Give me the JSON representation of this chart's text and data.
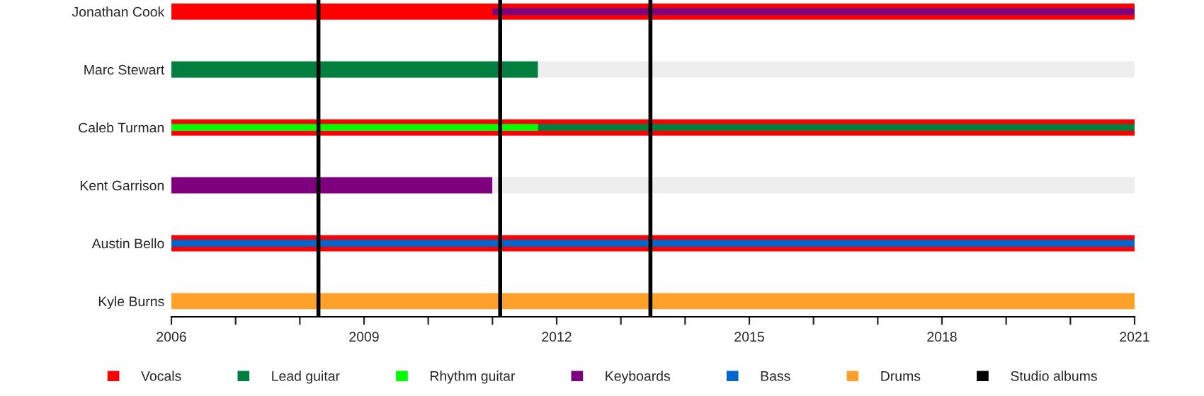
{
  "chart_data": {
    "type": "bar",
    "orientation": "horizontal",
    "categories": [
      "Jonathan Cook",
      "Marc Stewart",
      "Caleb Turman",
      "Kent Garrison",
      "Austin Bello",
      "Kyle Burns"
    ],
    "series": [
      {
        "name": "Vocals",
        "color": "#ff0000",
        "base": [
          2006,
          null,
          2006,
          null,
          2006,
          null
        ],
        "values": [
          15,
          null,
          15,
          null,
          15,
          null
        ]
      },
      {
        "name": "Lead guitar",
        "color": "#007f3f",
        "base": [
          null,
          2006,
          2011.71,
          null,
          null,
          null
        ],
        "values": [
          null,
          5.71,
          9.29,
          null,
          null,
          null
        ]
      },
      {
        "name": "Rhythm guitar",
        "color": "#00ff00",
        "base": [
          null,
          null,
          2006,
          null,
          null,
          null
        ],
        "values": [
          null,
          null,
          5.71,
          null,
          null,
          null
        ]
      },
      {
        "name": "Keyboards",
        "color": "#7f007f",
        "base": [
          2011.0,
          null,
          null,
          2006,
          null,
          null
        ],
        "values": [
          10.0,
          null,
          null,
          5.0,
          null,
          null
        ]
      },
      {
        "name": "Bass",
        "color": "#0066cc",
        "base": [
          null,
          null,
          null,
          null,
          2006,
          null
        ],
        "values": [
          null,
          null,
          null,
          null,
          15,
          null
        ]
      },
      {
        "name": "Drums",
        "color": "#ffa02a",
        "base": [
          null,
          null,
          null,
          null,
          null,
          2006
        ],
        "values": [
          null,
          null,
          null,
          null,
          null,
          15
        ]
      },
      {
        "color": "#eeeeee",
        "base": [
          null,
          2011.71,
          null,
          2011.0,
          null,
          null
        ],
        "values": [
          null,
          9.29,
          null,
          10.0,
          null,
          null
        ]
      }
    ],
    "ref_lines": [
      {
        "axis": "x",
        "value": 2008.29,
        "label": "Studio albums",
        "color": "#000000"
      },
      {
        "axis": "x",
        "value": 2011.12,
        "color": "#000000"
      },
      {
        "axis": "x",
        "value": 2013.46,
        "color": "#000000"
      }
    ],
    "xlim": [
      2006,
      2021
    ],
    "xticks": [
      2006,
      {
        "value": 2007,
        "label": null
      },
      {
        "value": 2008,
        "label": null
      },
      2009,
      {
        "value": 2010,
        "label": null
      },
      {
        "value": 2011,
        "label": null
      },
      2012,
      {
        "value": 2013,
        "label": null
      },
      {
        "value": 2014,
        "label": null
      },
      2015,
      {
        "value": 2016,
        "label": null
      },
      {
        "value": 2017,
        "label": null
      },
      2018,
      {
        "value": 2019,
        "label": null
      },
      {
        "value": 2020,
        "label": null
      },
      2021
    ],
    "grid": false,
    "legend": "bottom"
  }
}
